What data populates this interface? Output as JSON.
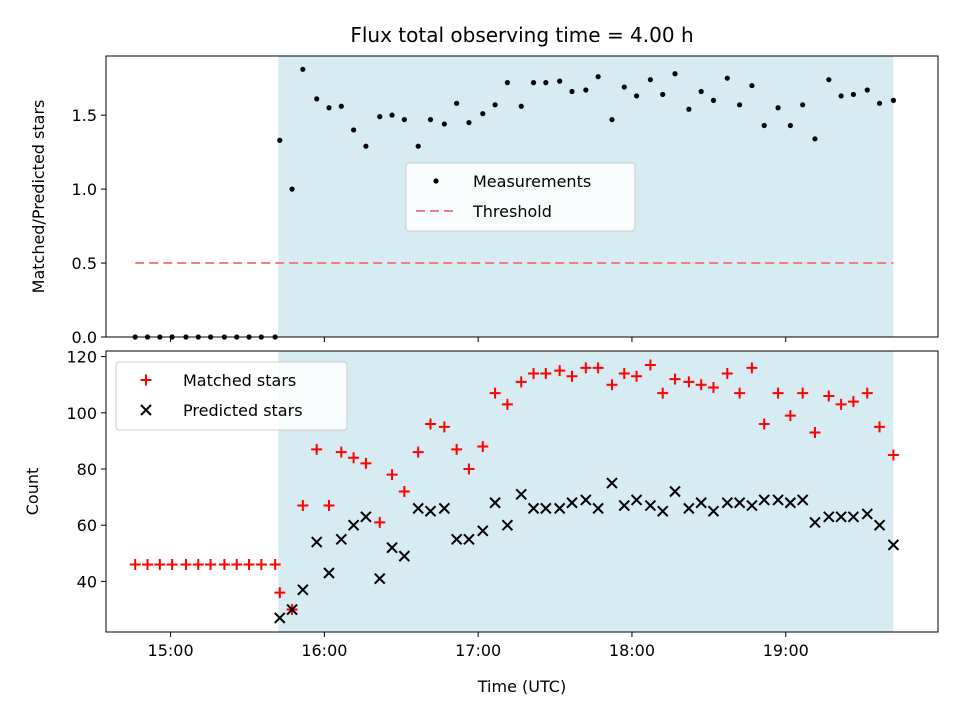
{
  "chart_data": {
    "title": "Flux total observing time = 4.00 h",
    "xlabel": "Time (UTC)",
    "x_units": "hours UTC",
    "xlim": [
      14.58,
      19.99
    ],
    "x_ticks": [
      {
        "value": 15,
        "label": "15:00"
      },
      {
        "value": 16,
        "label": "16:00"
      },
      {
        "value": 17,
        "label": "17:00"
      },
      {
        "value": 18,
        "label": "18:00"
      },
      {
        "value": 19,
        "label": "19:00"
      }
    ],
    "shaded_interval": {
      "start": 15.7,
      "end": 19.7,
      "color": "#add8e6"
    },
    "panels": [
      {
        "type": "scatter",
        "ylabel": "Matched/Predicted stars",
        "ylim": [
          0,
          1.9
        ],
        "y_ticks": [
          {
            "value": 0,
            "label": "0.0"
          },
          {
            "value": 0.5,
            "label": "0.5"
          },
          {
            "value": 1.0,
            "label": "1.0"
          },
          {
            "value": 1.5,
            "label": "1.5"
          }
        ],
        "legend": {
          "position": "center",
          "entries": [
            "Measurements",
            "Threshold"
          ]
        },
        "series": [
          {
            "name": "Measurements",
            "marker": "dot",
            "color": "#000000",
            "x": [
              14.77,
              14.85,
              14.93,
              15.01,
              15.1,
              15.18,
              15.26,
              15.35,
              15.43,
              15.51,
              15.59,
              15.68,
              15.71,
              15.79,
              15.86,
              15.95,
              16.03,
              16.11,
              16.19,
              16.27,
              16.36,
              16.44,
              16.52,
              16.61,
              16.69,
              16.78,
              16.86,
              16.94,
              17.03,
              17.11,
              17.19,
              17.28,
              17.36,
              17.44,
              17.53,
              17.61,
              17.7,
              17.78,
              17.87,
              17.95,
              18.03,
              18.12,
              18.2,
              18.28,
              18.37,
              18.45,
              18.53,
              18.62,
              18.7,
              18.78,
              18.86,
              18.95,
              19.03,
              19.11,
              19.19,
              19.28,
              19.36,
              19.44,
              19.53,
              19.61,
              19.7
            ],
            "y": [
              0,
              0,
              0,
              0,
              0,
              0,
              0,
              0,
              0,
              0,
              0,
              0,
              1.33,
              1.0,
              1.81,
              1.61,
              1.55,
              1.56,
              1.4,
              1.29,
              1.49,
              1.5,
              1.47,
              1.29,
              1.47,
              1.44,
              1.58,
              1.45,
              1.51,
              1.57,
              1.72,
              1.56,
              1.72,
              1.72,
              1.73,
              1.66,
              1.67,
              1.76,
              1.47,
              1.69,
              1.63,
              1.74,
              1.64,
              1.78,
              1.54,
              1.66,
              1.6,
              1.75,
              1.57,
              1.7,
              1.43,
              1.55,
              1.43,
              1.57,
              1.34,
              1.74,
              1.63,
              1.64,
              1.67,
              1.58,
              1.6
            ]
          },
          {
            "name": "Threshold",
            "type": "dashed-line",
            "color": "#f08080",
            "x": [
              14.77,
              19.7
            ],
            "y": [
              0.5,
              0.5
            ]
          }
        ]
      },
      {
        "type": "scatter",
        "ylabel": "Count",
        "ylim": [
          22,
          122
        ],
        "y_ticks": [
          {
            "value": 40,
            "label": "40"
          },
          {
            "value": 60,
            "label": "60"
          },
          {
            "value": 80,
            "label": "80"
          },
          {
            "value": 100,
            "label": "100"
          },
          {
            "value": 120,
            "label": "120"
          }
        ],
        "legend": {
          "position": "top-left",
          "entries": [
            "Matched stars",
            "Predicted stars"
          ]
        },
        "series": [
          {
            "name": "Matched stars",
            "marker": "plus",
            "color": "#ff0000",
            "x": [
              14.77,
              14.85,
              14.93,
              15.01,
              15.1,
              15.18,
              15.26,
              15.35,
              15.43,
              15.51,
              15.59,
              15.68,
              15.71,
              15.79,
              15.86,
              15.95,
              16.03,
              16.11,
              16.19,
              16.27,
              16.36,
              16.44,
              16.52,
              16.61,
              16.69,
              16.78,
              16.86,
              16.94,
              17.03,
              17.11,
              17.19,
              17.28,
              17.36,
              17.44,
              17.53,
              17.61,
              17.7,
              17.78,
              17.87,
              17.95,
              18.03,
              18.12,
              18.2,
              18.28,
              18.37,
              18.45,
              18.53,
              18.62,
              18.7,
              18.78,
              18.86,
              18.95,
              19.03,
              19.11,
              19.19,
              19.28,
              19.36,
              19.44,
              19.53,
              19.61,
              19.7
            ],
            "y": [
              46,
              46,
              46,
              46,
              46,
              46,
              46,
              46,
              46,
              46,
              46,
              46,
              36,
              30,
              67,
              87,
              67,
              86,
              84,
              82,
              61,
              78,
              72,
              86,
              96,
              95,
              87,
              80,
              88,
              107,
              103,
              111,
              114,
              114,
              115,
              113,
              116,
              116,
              110,
              114,
              113,
              117,
              107,
              112,
              111,
              110,
              109,
              114,
              107,
              116,
              96,
              107,
              99,
              107,
              93,
              106,
              103,
              104,
              107,
              95,
              85
            ]
          },
          {
            "name": "Predicted stars",
            "marker": "x",
            "color": "#000000",
            "x": [
              15.71,
              15.79,
              15.86,
              15.95,
              16.03,
              16.11,
              16.19,
              16.27,
              16.36,
              16.44,
              16.52,
              16.61,
              16.69,
              16.78,
              16.86,
              16.94,
              17.03,
              17.11,
              17.19,
              17.28,
              17.36,
              17.44,
              17.53,
              17.61,
              17.7,
              17.78,
              17.87,
              17.95,
              18.03,
              18.12,
              18.2,
              18.28,
              18.37,
              18.45,
              18.53,
              18.62,
              18.7,
              18.78,
              18.86,
              18.95,
              19.03,
              19.11,
              19.19,
              19.28,
              19.36,
              19.44,
              19.53,
              19.61,
              19.7
            ],
            "y": [
              27,
              30,
              37,
              54,
              43,
              55,
              60,
              63,
              41,
              52,
              49,
              66,
              65,
              66,
              55,
              55,
              58,
              68,
              60,
              71,
              66,
              66,
              66,
              68,
              69,
              66,
              75,
              67,
              69,
              67,
              65,
              72,
              66,
              68,
              65,
              68,
              68,
              67,
              69,
              69,
              68,
              69,
              61,
              63,
              63,
              63,
              64,
              60,
              53
            ]
          }
        ]
      }
    ]
  }
}
